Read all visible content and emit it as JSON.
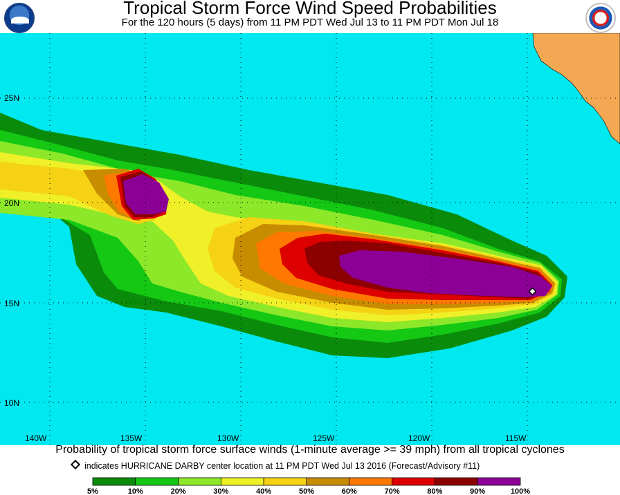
{
  "header": {
    "title": "Tropical Storm Force Wind Speed Probabilities",
    "subtitle": "For the 120 hours (5 days) from 11 PM PDT Wed Jul 13 to 11 PM PDT Mon Jul 18",
    "left_logo_text": "NOAA",
    "right_logo_text": "NATIONAL WEATHER SERVICE"
  },
  "map": {
    "ocean_color": "#00e8f0",
    "land_color": "#f5a854",
    "lat_labels": [
      "25N",
      "20N",
      "15N",
      "10N"
    ],
    "lon_labels": [
      "140W",
      "135W",
      "130W",
      "125W",
      "120W",
      "115W"
    ],
    "storm_marker": {
      "name": "HURRICANE DARBY",
      "lat": 15.6,
      "lon": 114.9
    }
  },
  "footer": {
    "caption": "Probability of tropical storm force surface winds (1-minute average >= 39 mph) from all tropical cyclones",
    "marker_note": "indicates HURRICANE DARBY center location at 11 PM PDT Wed Jul 13 2016 (Forecast/Advisory #11)"
  },
  "legend": {
    "colors": [
      "#0a8c0a",
      "#14c814",
      "#8ce828",
      "#f0f028",
      "#f5d214",
      "#c88c00",
      "#ff7800",
      "#dc0000",
      "#8c0000",
      "#8c0096"
    ],
    "labels": [
      "5%",
      "10%",
      "20%",
      "30%",
      "40%",
      "50%",
      "60%",
      "70%",
      "80%",
      "90%",
      "100%"
    ]
  }
}
